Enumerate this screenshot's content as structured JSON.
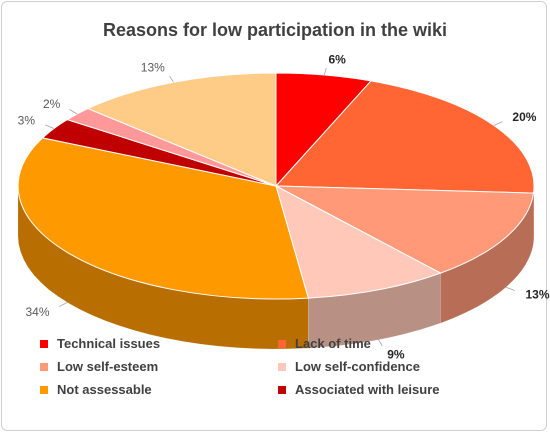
{
  "chart_data": {
    "type": "pie",
    "title": "Reasons for low participation in the wiki",
    "categories": [
      "Technical issues",
      "Lack of time",
      "Low self-esteem",
      "Low self-confidence",
      "Not assessable",
      "Associated with leisure",
      "",
      ""
    ],
    "values": [
      6,
      20,
      13,
      9,
      34,
      3,
      2,
      13
    ],
    "data_labels": [
      "6%",
      "20%",
      "13%",
      "9%",
      "34%",
      "3%",
      "2%",
      "13%"
    ],
    "colors": [
      "#ff0000",
      "#ff6633",
      "#ff9977",
      "#ffc8b8",
      "#ff9900",
      "#c00000",
      "#ff9999",
      "#ffcc88"
    ],
    "legend_position": "bottom",
    "style": "3d-pie"
  }
}
